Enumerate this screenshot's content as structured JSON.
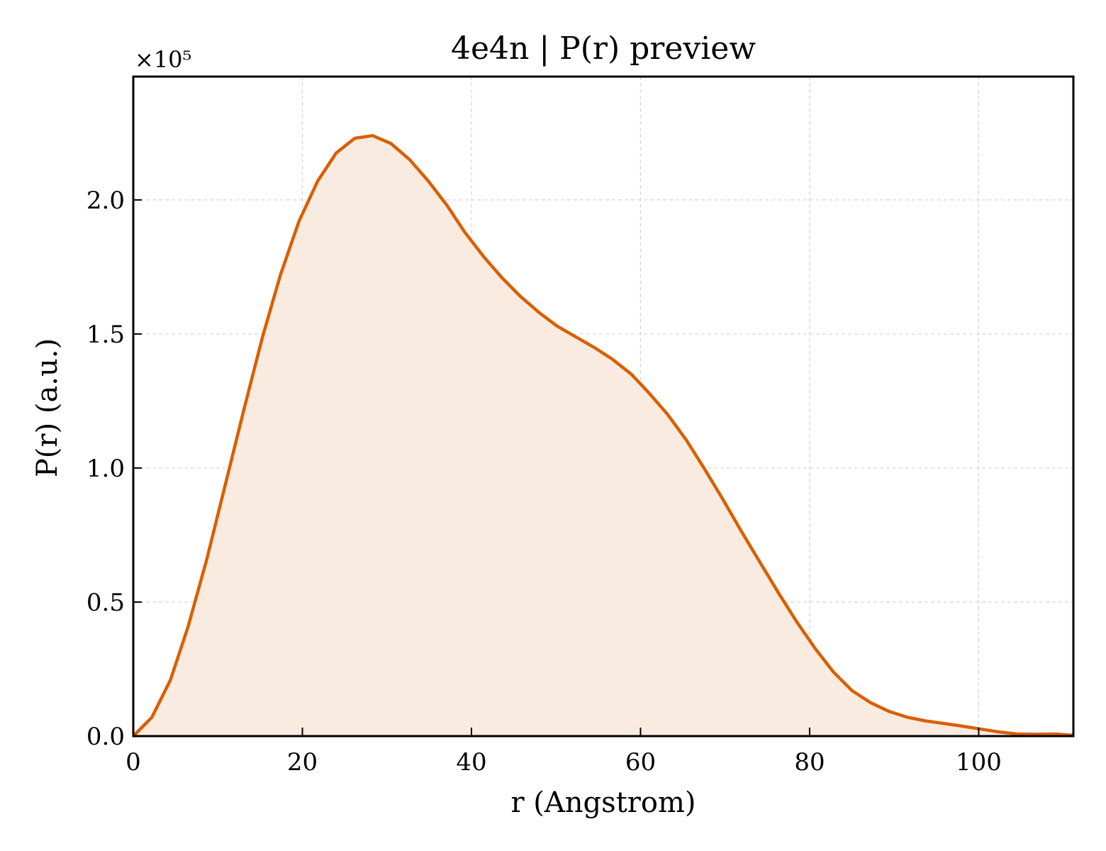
{
  "chart_data": {
    "type": "area",
    "title": "4e4n | P(r) preview",
    "xlabel": "r (Angstrom)",
    "ylabel": "P(r) (a.u.)",
    "y_offset_label": "×10⁵",
    "xlim": [
      0,
      111.2
    ],
    "ylim": [
      0,
      2.46
    ],
    "grid": true,
    "line_color": "#d95f02",
    "fill_color": "#f9ebe0",
    "x_ticks": [
      0,
      20,
      40,
      60,
      80,
      100
    ],
    "x_tick_labels": [
      "0",
      "20",
      "40",
      "60",
      "80",
      "100"
    ],
    "y_ticks": [
      0.0,
      0.5,
      1.0,
      1.5,
      2.0
    ],
    "y_tick_labels": [
      "0.0",
      "0.5",
      "1.0",
      "1.5",
      "2.0"
    ],
    "series": [
      {
        "x": [
          0,
          2.2,
          4.4,
          6.5,
          8.7,
          10.9,
          13.1,
          15.3,
          17.4,
          19.6,
          21.8,
          24.0,
          26.2,
          28.3,
          30.5,
          32.7,
          34.9,
          37.1,
          39.2,
          41.4,
          43.6,
          45.8,
          48.0,
          50.1,
          52.3,
          54.5,
          56.7,
          58.9,
          61.0,
          63.2,
          65.4,
          67.6,
          69.8,
          71.9,
          74.1,
          76.3,
          78.5,
          80.7,
          82.8,
          85.0,
          87.2,
          89.4,
          91.6,
          93.7,
          95.9,
          98.1,
          100.3,
          102.5,
          104.6,
          106.8,
          109.0,
          111.2
        ],
        "y": [
          0.0,
          0.07,
          0.21,
          0.41,
          0.66,
          0.94,
          1.22,
          1.49,
          1.72,
          1.92,
          2.07,
          2.175,
          2.23,
          2.24,
          2.21,
          2.15,
          2.07,
          1.98,
          1.88,
          1.79,
          1.71,
          1.64,
          1.58,
          1.53,
          1.49,
          1.45,
          1.405,
          1.35,
          1.28,
          1.2,
          1.105,
          0.995,
          0.88,
          0.765,
          0.65,
          0.535,
          0.425,
          0.325,
          0.24,
          0.17,
          0.125,
          0.092,
          0.07,
          0.057,
          0.047,
          0.037,
          0.026,
          0.015,
          0.008,
          0.007,
          0.008,
          0.003
        ]
      }
    ]
  }
}
